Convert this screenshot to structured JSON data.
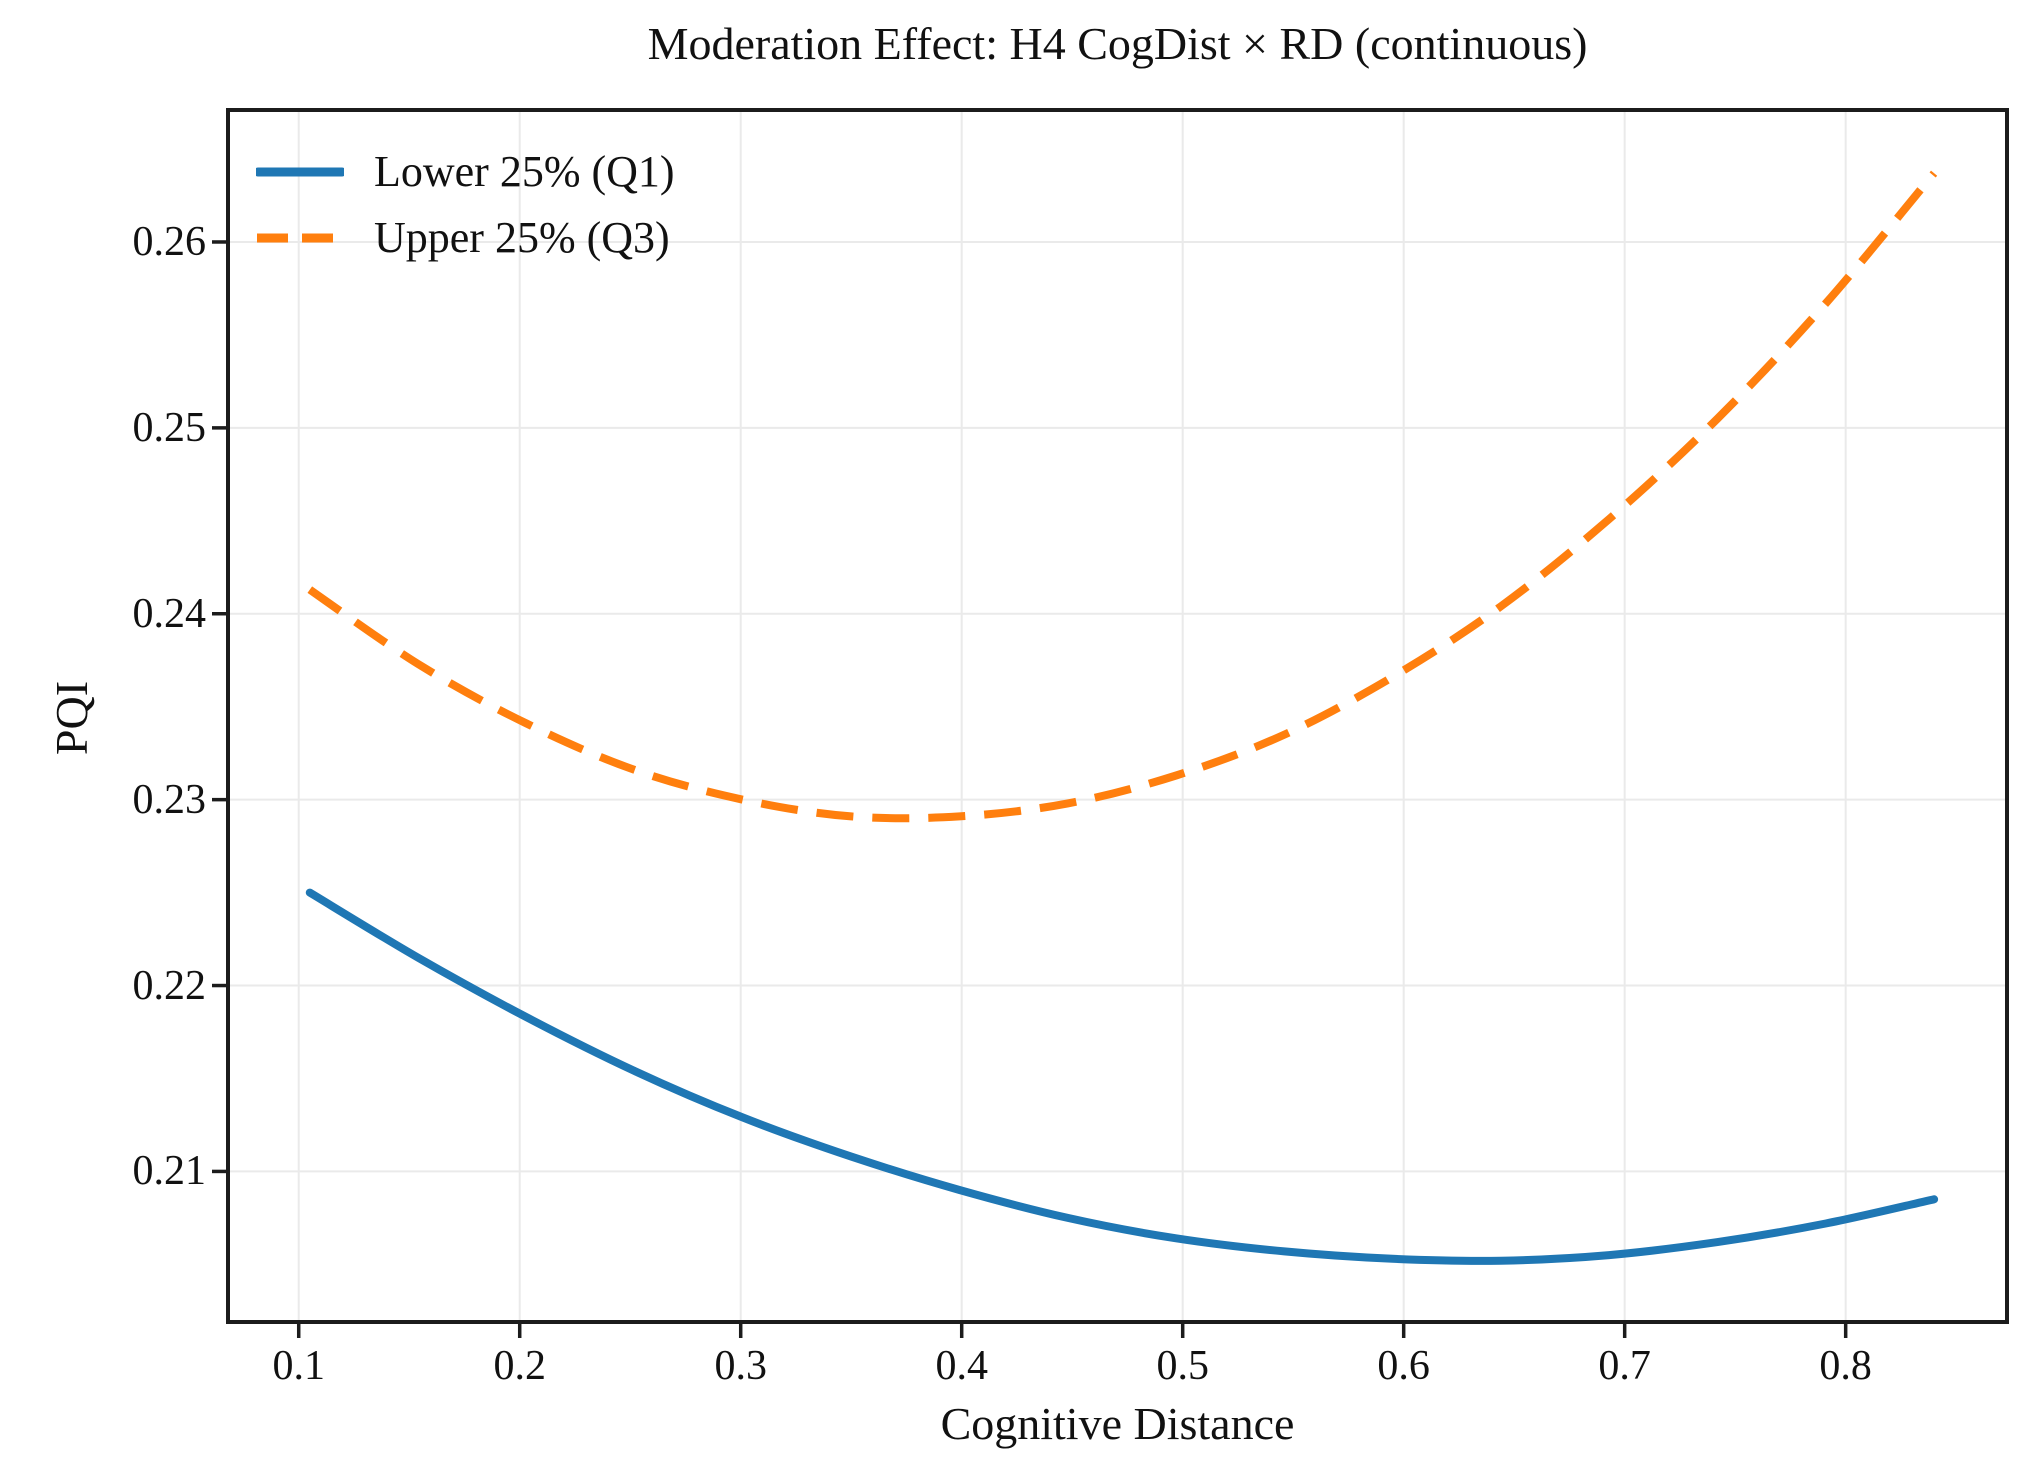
{
  "figure": {
    "title": "Moderation Effect: H4 CogDist × RD (continuous)"
  },
  "chart_data": {
    "type": "line",
    "title": "Moderation Effect: H4 CogDist × RD (continuous)",
    "xlabel": "Cognitive Distance",
    "ylabel": "PQI",
    "xlim": [
      0.068,
      0.873
    ],
    "ylim": [
      0.2019,
      0.2671
    ],
    "grid": true,
    "legend_position": "upper-left",
    "x_ticks": [
      0.1,
      0.2,
      0.3,
      0.4,
      0.5,
      0.6,
      0.7,
      0.8
    ],
    "x_tick_labels": [
      "0.1",
      "0.2",
      "0.3",
      "0.4",
      "0.5",
      "0.6",
      "0.7",
      "0.8"
    ],
    "y_ticks": [
      0.21,
      0.22,
      0.23,
      0.24,
      0.25,
      0.26
    ],
    "y_tick_labels": [
      "0.21",
      "0.22",
      "0.23",
      "0.24",
      "0.25",
      "0.26"
    ],
    "x": [
      0.105,
      0.154,
      0.203,
      0.252,
      0.301,
      0.35,
      0.399,
      0.448,
      0.497,
      0.546,
      0.595,
      0.644,
      0.693,
      0.742,
      0.791,
      0.84
    ],
    "series": [
      {
        "name": "Lower 25% (Q1)",
        "color": "#1f77b4",
        "line_style": "solid",
        "values": [
          0.225,
          0.2215,
          0.2183,
          0.2154,
          0.2129,
          0.2108,
          0.209,
          0.2075,
          0.2064,
          0.2057,
          0.2053,
          0.2052,
          0.2055,
          0.2062,
          0.2072,
          0.2085
        ]
      },
      {
        "name": "Upper 25% (Q3)",
        "color": "#ff7f0e",
        "line_style": "dashed",
        "values": [
          0.2413,
          0.2373,
          0.2341,
          0.2316,
          0.23,
          0.2291,
          0.2291,
          0.2298,
          0.2313,
          0.2335,
          0.2366,
          0.2404,
          0.2451,
          0.2505,
          0.2567,
          0.2637
        ]
      }
    ]
  },
  "style": {
    "background": "#ffffff",
    "grid_color": "#eaeaea",
    "spine_color": "#1c1c1c",
    "tick_color": "#1c1c1c",
    "text_color": "#111111"
  }
}
